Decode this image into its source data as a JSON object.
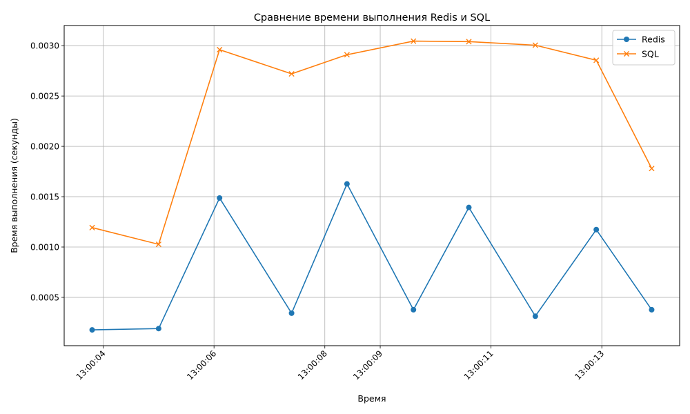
{
  "chart_data": {
    "type": "line",
    "title": "Сравнение времени выполнения Redis и SQL",
    "xlabel": "Время",
    "ylabel": "Время выполнения (секунды)",
    "x_ticks": [
      "13:00:04",
      "13:00:06",
      "13:00:08",
      "13:00:09",
      "13:00:11",
      "13:00:13"
    ],
    "y_ticks": [
      "0.0005",
      "0.0010",
      "0.0015",
      "0.0020",
      "0.0025",
      "0.0030"
    ],
    "x": [
      "13:00:03.8",
      "13:00:05.0",
      "13:00:06.1",
      "13:00:07.4",
      "13:00:08.4",
      "13:00:09.6",
      "13:00:10.6",
      "13:00:11.8",
      "13:00:12.9",
      "13:00:13.9"
    ],
    "series": [
      {
        "name": "Redis",
        "marker": "o",
        "color": "#1f77b4",
        "values": [
          0.000177,
          0.00019,
          0.001487,
          0.000343,
          0.001627,
          0.000377,
          0.001393,
          0.000313,
          0.001173,
          0.000377
        ]
      },
      {
        "name": "SQL",
        "marker": "x",
        "color": "#ff7f0e",
        "values": [
          0.001193,
          0.001027,
          0.00296,
          0.00272,
          0.00291,
          0.003045,
          0.00304,
          0.003005,
          0.002855,
          0.00178
        ]
      }
    ],
    "ylim": [
      2e-05,
      0.0032
    ],
    "grid": true,
    "legend_position": "top-right"
  }
}
